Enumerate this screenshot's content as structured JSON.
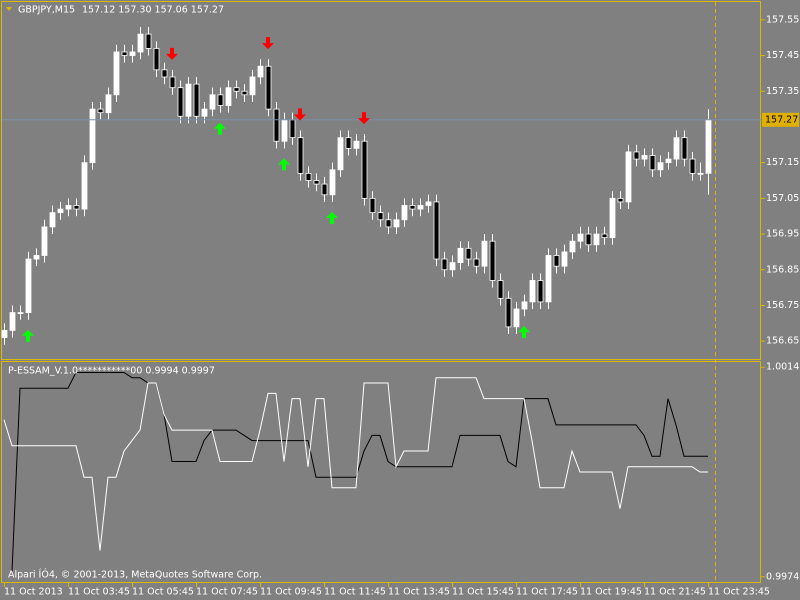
{
  "chart_data": [
    {
      "type": "candlestick",
      "title": "GBPJPY,M15",
      "ohlc_text": "157.12 157.30 157.06 157.27",
      "copyright": "Alpari ÍÓ4, © 2001-2013, MetaQuotes Software Corp.",
      "categories": [
        "11 Oct 2013",
        null,
        null,
        null,
        null,
        null,
        null,
        null,
        "11 Oct 03:45",
        null,
        null,
        null,
        null,
        null,
        null,
        null,
        "11 Oct 05:45",
        null,
        null,
        null,
        null,
        null,
        null,
        null,
        "11 Oct 07:45",
        null,
        null,
        null,
        null,
        null,
        null,
        null,
        "11 Oct 09:45",
        null,
        null,
        null,
        null,
        null,
        null,
        null,
        "11 Oct 11:45",
        null,
        null,
        null,
        null,
        null,
        null,
        null,
        "11 Oct 13:45",
        null,
        null,
        null,
        null,
        null,
        null,
        null,
        "11 Oct 15:45",
        null,
        null,
        null,
        null,
        null,
        null,
        null,
        "11 Oct 17:45",
        null,
        null,
        null,
        null,
        null,
        null,
        null,
        "11 Oct 19:45",
        null,
        null,
        null,
        null,
        null,
        null,
        null,
        "11 Oct 21:45",
        null,
        null,
        null,
        null,
        null,
        null,
        null,
        "11 Oct 23:45"
      ],
      "open": [
        156.66,
        156.68,
        156.73,
        156.73,
        156.88,
        156.89,
        156.97,
        157.01,
        157.02,
        157.03,
        157.02,
        157.15,
        157.3,
        157.29,
        157.34,
        157.46,
        157.45,
        157.46,
        157.51,
        157.47,
        157.41,
        157.39,
        157.36,
        157.28,
        157.37,
        157.28,
        157.3,
        157.34,
        157.31,
        157.36,
        157.35,
        157.34,
        157.39,
        157.42,
        157.3,
        157.21,
        157.27,
        157.22,
        157.12,
        157.1,
        157.09,
        157.06,
        157.13,
        157.22,
        157.19,
        157.21,
        157.05,
        157.01,
        156.99,
        156.97,
        156.99,
        157.03,
        157.02,
        157.03,
        157.04,
        156.88,
        156.85,
        156.87,
        156.91,
        156.88,
        156.86,
        156.93,
        156.82,
        156.77,
        156.69,
        156.74,
        156.76,
        156.82,
        156.76,
        156.89,
        156.86,
        156.9,
        156.93,
        156.95,
        156.92,
        156.95,
        156.94,
        157.05,
        157.04,
        157.18,
        157.16,
        157.17,
        157.13,
        157.15,
        157.16,
        157.22,
        157.16,
        157.12,
        157.12
      ],
      "high": [
        156.7,
        156.75,
        156.75,
        156.9,
        156.91,
        156.99,
        157.03,
        157.04,
        157.05,
        157.05,
        157.17,
        157.32,
        157.32,
        157.36,
        157.48,
        157.48,
        157.48,
        157.53,
        157.53,
        157.49,
        157.43,
        157.41,
        157.38,
        157.39,
        157.39,
        157.32,
        157.36,
        157.36,
        157.38,
        157.38,
        157.37,
        157.41,
        157.44,
        157.44,
        157.32,
        157.29,
        157.29,
        157.24,
        157.14,
        157.12,
        157.11,
        157.15,
        157.24,
        157.24,
        157.23,
        157.23,
        157.07,
        157.03,
        157.01,
        157.01,
        157.05,
        157.05,
        157.05,
        157.06,
        157.06,
        156.9,
        156.89,
        156.93,
        156.93,
        156.9,
        156.95,
        156.95,
        156.84,
        156.79,
        156.76,
        156.78,
        156.84,
        156.84,
        156.91,
        156.91,
        156.92,
        156.95,
        156.97,
        156.97,
        156.97,
        156.97,
        157.07,
        157.07,
        157.2,
        157.2,
        157.19,
        157.19,
        157.17,
        157.18,
        157.24,
        157.24,
        157.18,
        157.15,
        157.3
      ],
      "low": [
        156.64,
        156.66,
        156.71,
        156.71,
        156.86,
        156.87,
        156.95,
        156.99,
        157.0,
        157.0,
        157.0,
        157.13,
        157.27,
        157.27,
        157.32,
        157.43,
        157.43,
        157.44,
        157.45,
        157.39,
        157.37,
        157.34,
        157.26,
        157.26,
        157.26,
        157.26,
        157.28,
        157.29,
        157.29,
        157.33,
        157.32,
        157.32,
        157.37,
        157.28,
        157.19,
        157.19,
        157.2,
        157.1,
        157.08,
        157.07,
        157.04,
        157.04,
        157.11,
        157.17,
        157.17,
        157.03,
        156.99,
        156.97,
        156.95,
        156.95,
        156.97,
        157.0,
        157.0,
        157.01,
        156.86,
        156.83,
        156.83,
        156.85,
        156.86,
        156.84,
        156.84,
        156.8,
        156.75,
        156.67,
        156.67,
        156.72,
        156.74,
        156.74,
        156.74,
        156.84,
        156.84,
        156.88,
        156.91,
        156.9,
        156.9,
        156.92,
        156.92,
        157.02,
        157.02,
        157.14,
        157.14,
        157.11,
        157.11,
        157.13,
        157.14,
        157.14,
        157.1,
        157.1,
        157.06
      ],
      "close": [
        156.68,
        156.73,
        156.73,
        156.88,
        156.89,
        156.97,
        157.01,
        157.02,
        157.03,
        157.02,
        157.15,
        157.3,
        157.29,
        157.34,
        157.46,
        157.45,
        157.46,
        157.51,
        157.47,
        157.41,
        157.39,
        157.36,
        157.28,
        157.37,
        157.28,
        157.3,
        157.34,
        157.31,
        157.36,
        157.35,
        157.34,
        157.39,
        157.42,
        157.3,
        157.21,
        157.27,
        157.22,
        157.12,
        157.1,
        157.09,
        157.06,
        157.13,
        157.22,
        157.19,
        157.21,
        157.05,
        157.01,
        156.99,
        156.97,
        156.99,
        157.03,
        157.02,
        157.03,
        157.04,
        156.88,
        156.85,
        156.87,
        156.91,
        156.88,
        156.86,
        156.93,
        156.82,
        156.77,
        156.69,
        156.74,
        156.76,
        156.82,
        156.76,
        156.89,
        156.86,
        156.9,
        156.93,
        156.95,
        156.92,
        156.95,
        156.94,
        157.05,
        157.04,
        157.18,
        157.16,
        157.17,
        157.13,
        157.15,
        157.16,
        157.22,
        157.16,
        157.12,
        157.12,
        157.27
      ],
      "up_color": "#ffffff",
      "down_color": "#000000",
      "ylim": [
        156.6,
        157.6
      ],
      "yticks": [
        157.55,
        157.45,
        157.35,
        157.15,
        157.05,
        156.95,
        156.85,
        156.75,
        156.65
      ],
      "buy_signals": [
        3,
        27,
        35,
        41,
        65
      ],
      "sell_signals": [
        21,
        33,
        37,
        45
      ],
      "buy_color": "#00ff00",
      "sell_color": "#ff0000"
    },
    {
      "type": "line",
      "title": "P-ESSAM_V.1.0***********00 0.9994 0.9997",
      "series": [
        {
          "color": "#000000",
          "values": [
            null,
            0.9975,
            1.001,
            1.001,
            1.001,
            1.001,
            1.001,
            1.001,
            1.001,
            1.0013,
            1.0013,
            1.0013,
            1.0013,
            1.0013,
            1.0013,
            1.0013,
            1.0012,
            1.0012,
            1.0011,
            1.0011,
            1.0005,
            0.9996,
            0.9996,
            0.9996,
            0.9996,
            1.0,
            1.0002,
            1.0002,
            1.0002,
            1.0002,
            1.0001,
            1.0,
            1.0,
            1.0,
            1.0,
            1.0,
            1.0,
            1.0,
            1.0,
            0.9993,
            0.9993,
            0.9993,
            0.9993,
            0.9993,
            0.9993,
            0.9998,
            1.0001,
            1.0001,
            0.9996,
            0.9995,
            0.9995,
            0.9995,
            0.9995,
            0.9995,
            0.9995,
            0.9995,
            0.9995,
            1.0001,
            1.0001,
            1.0001,
            1.0001,
            1.0001,
            1.0001,
            0.9996,
            0.9995,
            1.0008,
            1.0008,
            1.0008,
            1.0008,
            1.0003,
            1.0003,
            1.0003,
            1.0003,
            1.0003,
            1.0003,
            1.0003,
            1.0003,
            1.0003,
            1.0003,
            1.0003,
            1.0001,
            0.9997,
            0.9997,
            1.0008,
            1.0003,
            0.9997,
            0.9997,
            0.9997,
            0.9997
          ]
        },
        {
          "color": "#ffffff",
          "values": [
            1.0004,
            0.9999,
            0.9999,
            0.9999,
            0.9999,
            0.9999,
            0.9999,
            0.9999,
            0.9999,
            0.9999,
            0.9993,
            0.9993,
            0.9979,
            0.9993,
            0.9993,
            0.9998,
            1.0,
            1.0002,
            1.0011,
            1.0011,
            1.0005,
            1.0002,
            1.0002,
            1.0002,
            1.0002,
            1.0002,
            1.0002,
            0.9996,
            0.9996,
            0.9996,
            0.9996,
            0.9996,
            1.0002,
            1.0009,
            1.0009,
            0.9996,
            1.0008,
            1.0008,
            0.9995,
            1.0008,
            1.0008,
            0.9991,
            0.9991,
            0.9991,
            0.9991,
            1.0011,
            1.0011,
            1.0011,
            1.0011,
            0.9995,
            0.9998,
            0.9998,
            0.9998,
            0.9998,
            1.0012,
            1.0012,
            1.0012,
            1.0012,
            1.0012,
            1.0012,
            1.0008,
            1.0008,
            1.0008,
            1.0008,
            1.0008,
            1.0008,
            1.0,
            0.9991,
            0.9991,
            0.9991,
            0.9991,
            0.9998,
            0.9994,
            0.9994,
            0.9994,
            0.9994,
            0.9994,
            0.9987,
            0.9995,
            0.9995,
            0.9995,
            0.9995,
            0.9995,
            0.9995,
            0.9995,
            0.9995,
            0.9995,
            0.9994,
            0.9994
          ]
        }
      ],
      "ylim": [
        0.9973,
        1.0015
      ],
      "yticks": [
        1.0014,
        0.9974
      ]
    }
  ]
}
